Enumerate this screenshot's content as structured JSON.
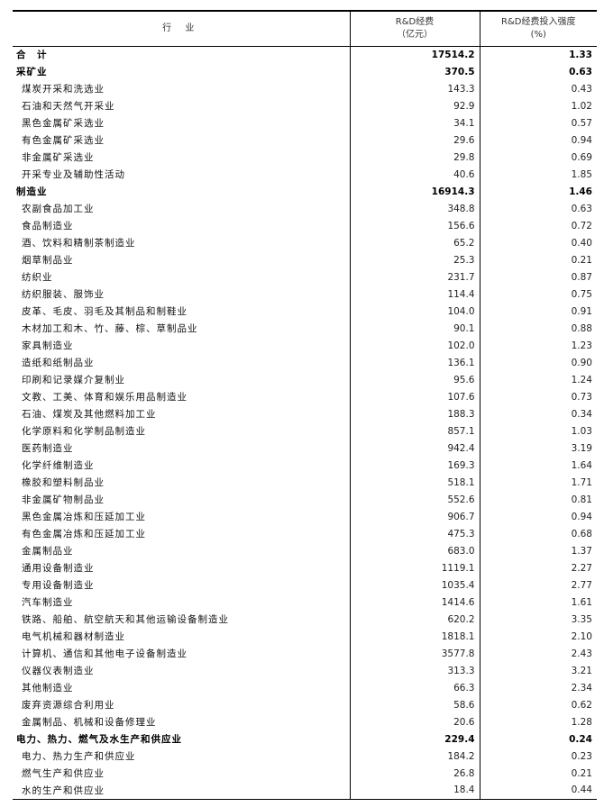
{
  "header": {
    "industry": "行 业",
    "rd_label": "R&D经费",
    "rd_unit": "（亿元）",
    "intensity_label": "R&D经费投入强度",
    "intensity_unit": "(%)"
  },
  "rows": [
    {
      "name": "合　计",
      "value": "17514.2",
      "intensity": "1.33",
      "type": "section"
    },
    {
      "name": "采矿业",
      "value": "370.5",
      "intensity": "0.63",
      "type": "section"
    },
    {
      "name": "煤炭开采和洗选业",
      "value": "143.3",
      "intensity": "0.43",
      "type": "item"
    },
    {
      "name": "石油和天然气开采业",
      "value": "92.9",
      "intensity": "1.02",
      "type": "item"
    },
    {
      "name": "黑色金属矿采选业",
      "value": "34.1",
      "intensity": "0.57",
      "type": "item"
    },
    {
      "name": "有色金属矿采选业",
      "value": "29.6",
      "intensity": "0.94",
      "type": "item"
    },
    {
      "name": "非金属矿采选业",
      "value": "29.8",
      "intensity": "0.69",
      "type": "item"
    },
    {
      "name": "开采专业及辅助性活动",
      "value": "40.6",
      "intensity": "1.85",
      "type": "item"
    },
    {
      "name": "制造业",
      "value": "16914.3",
      "intensity": "1.46",
      "type": "section"
    },
    {
      "name": "农副食品加工业",
      "value": "348.8",
      "intensity": "0.63",
      "type": "item"
    },
    {
      "name": "食品制造业",
      "value": "156.6",
      "intensity": "0.72",
      "type": "item"
    },
    {
      "name": "酒、饮料和精制茶制造业",
      "value": "65.2",
      "intensity": "0.40",
      "type": "item"
    },
    {
      "name": "烟草制品业",
      "value": "25.3",
      "intensity": "0.21",
      "type": "item"
    },
    {
      "name": "纺织业",
      "value": "231.7",
      "intensity": "0.87",
      "type": "item"
    },
    {
      "name": "纺织服装、服饰业",
      "value": "114.4",
      "intensity": "0.75",
      "type": "item"
    },
    {
      "name": "皮革、毛皮、羽毛及其制品和制鞋业",
      "value": "104.0",
      "intensity": "0.91",
      "type": "item"
    },
    {
      "name": "木材加工和木、竹、藤、棕、草制品业",
      "value": "90.1",
      "intensity": "0.88",
      "type": "item"
    },
    {
      "name": "家具制造业",
      "value": "102.0",
      "intensity": "1.23",
      "type": "item"
    },
    {
      "name": "造纸和纸制品业",
      "value": "136.1",
      "intensity": "0.90",
      "type": "item"
    },
    {
      "name": "印刷和记录媒介复制业",
      "value": "95.6",
      "intensity": "1.24",
      "type": "item"
    },
    {
      "name": "文教、工美、体育和娱乐用品制造业",
      "value": "107.6",
      "intensity": "0.73",
      "type": "item"
    },
    {
      "name": "石油、煤炭及其他燃料加工业",
      "value": "188.3",
      "intensity": "0.34",
      "type": "item"
    },
    {
      "name": "化学原料和化学制品制造业",
      "value": "857.1",
      "intensity": "1.03",
      "type": "item"
    },
    {
      "name": "医药制造业",
      "value": "942.4",
      "intensity": "3.19",
      "type": "item"
    },
    {
      "name": "化学纤维制造业",
      "value": "169.3",
      "intensity": "1.64",
      "type": "item"
    },
    {
      "name": "橡胶和塑料制品业",
      "value": "518.1",
      "intensity": "1.71",
      "type": "item"
    },
    {
      "name": "非金属矿物制品业",
      "value": "552.6",
      "intensity": "0.81",
      "type": "item"
    },
    {
      "name": "黑色金属冶炼和压延加工业",
      "value": "906.7",
      "intensity": "0.94",
      "type": "item"
    },
    {
      "name": "有色金属冶炼和压延加工业",
      "value": "475.3",
      "intensity": "0.68",
      "type": "item"
    },
    {
      "name": "金属制品业",
      "value": "683.0",
      "intensity": "1.37",
      "type": "item"
    },
    {
      "name": "通用设备制造业",
      "value": "1119.1",
      "intensity": "2.27",
      "type": "item"
    },
    {
      "name": "专用设备制造业",
      "value": "1035.4",
      "intensity": "2.77",
      "type": "item"
    },
    {
      "name": "汽车制造业",
      "value": "1414.6",
      "intensity": "1.61",
      "type": "item"
    },
    {
      "name": "铁路、船舶、航空航天和其他运输设备制造业",
      "value": "620.2",
      "intensity": "3.35",
      "type": "item"
    },
    {
      "name": "电气机械和器材制造业",
      "value": "1818.1",
      "intensity": "2.10",
      "type": "item"
    },
    {
      "name": "计算机、通信和其他电子设备制造业",
      "value": "3577.8",
      "intensity": "2.43",
      "type": "item"
    },
    {
      "name": "仪器仪表制造业",
      "value": "313.3",
      "intensity": "3.21",
      "type": "item"
    },
    {
      "name": "其他制造业",
      "value": "66.3",
      "intensity": "2.34",
      "type": "item"
    },
    {
      "name": "废弃资源综合利用业",
      "value": "58.6",
      "intensity": "0.62",
      "type": "item"
    },
    {
      "name": "金属制品、机械和设备修理业",
      "value": "20.6",
      "intensity": "1.28",
      "type": "item"
    },
    {
      "name": "电力、热力、燃气及水生产和供应业",
      "value": "229.4",
      "intensity": "0.24",
      "type": "section"
    },
    {
      "name": "电力、热力生产和供应业",
      "value": "184.2",
      "intensity": "0.23",
      "type": "item"
    },
    {
      "name": "燃气生产和供应业",
      "value": "26.8",
      "intensity": "0.21",
      "type": "item"
    },
    {
      "name": "水的生产和供应业",
      "value": "18.4",
      "intensity": "0.44",
      "type": "item"
    }
  ]
}
